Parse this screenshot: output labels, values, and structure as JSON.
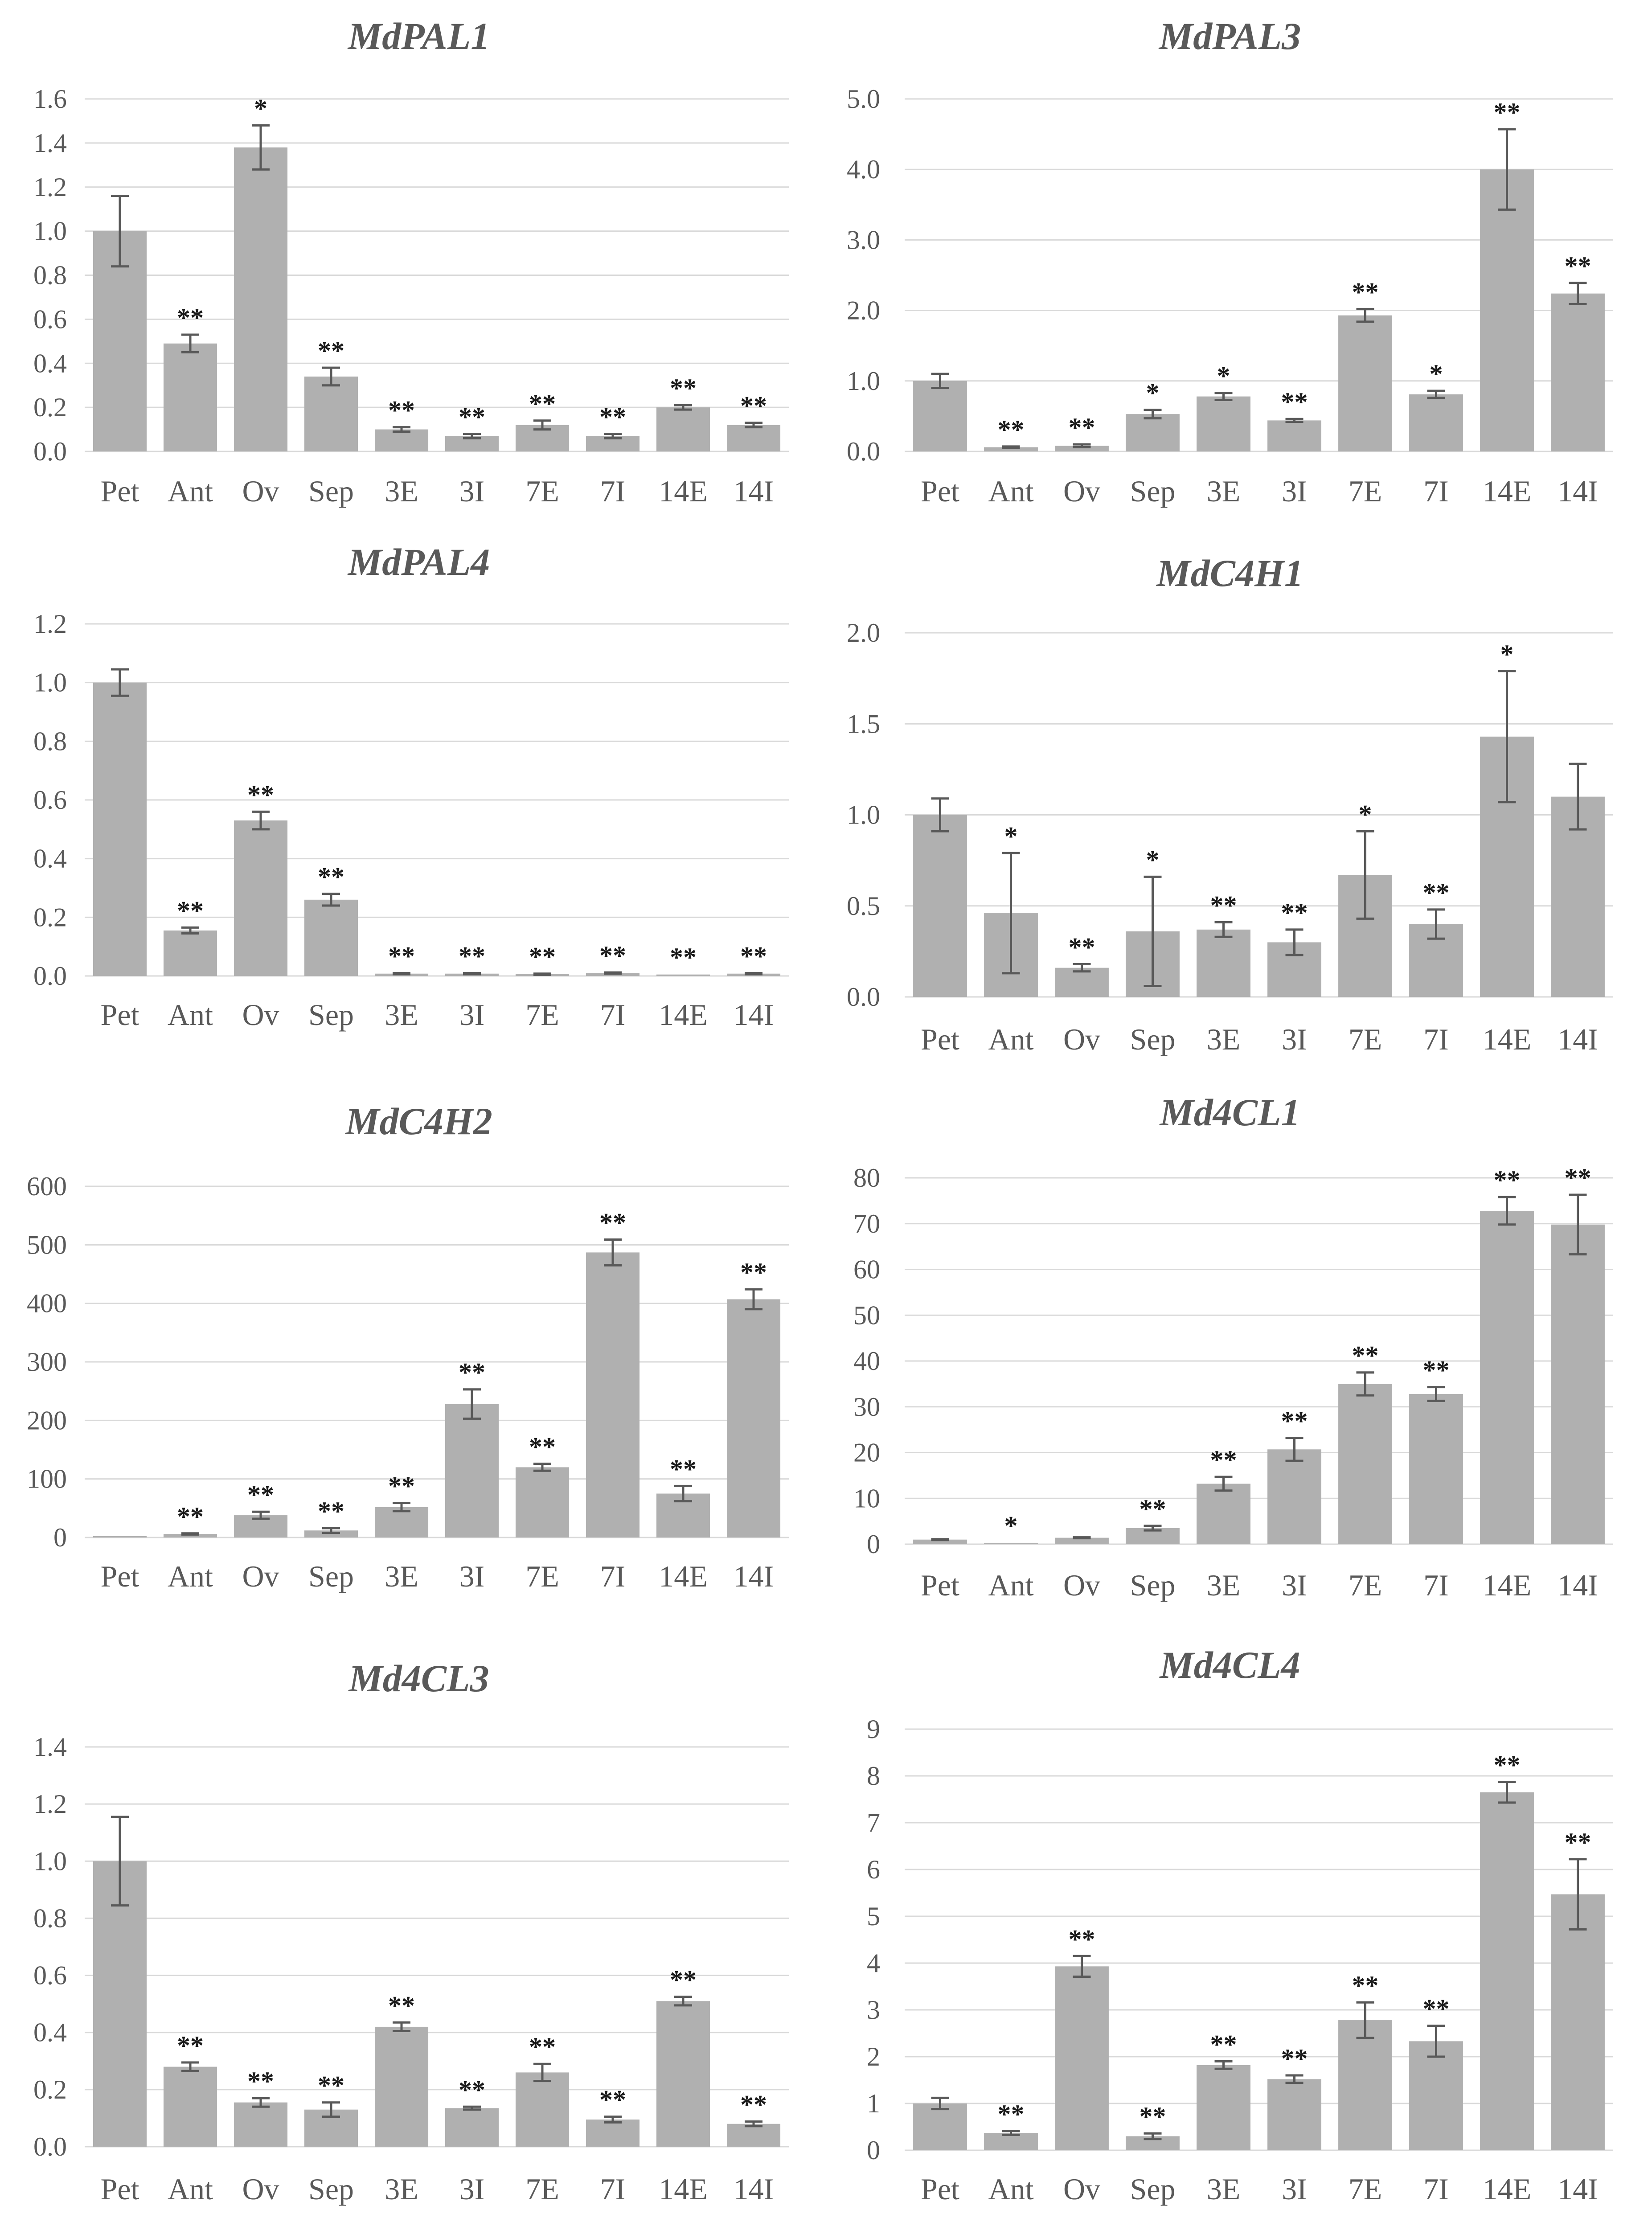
{
  "chart_data": [
    {
      "type": "bar",
      "title": "MdPAL1",
      "categories": [
        "Pet",
        "Ant",
        "Ov",
        "Sep",
        "3E",
        "3I",
        "7E",
        "7I",
        "14E",
        "14I"
      ],
      "values": [
        1.0,
        0.49,
        1.38,
        0.34,
        0.1,
        0.07,
        0.12,
        0.07,
        0.2,
        0.12
      ],
      "errors": [
        0.16,
        0.04,
        0.1,
        0.04,
        0.01,
        0.01,
        0.02,
        0.01,
        0.01,
        0.01
      ],
      "significance": [
        "",
        "**",
        "*",
        "**",
        "**",
        "**",
        "**",
        "**",
        "**",
        "**"
      ],
      "yticks": [
        "0.0",
        "0.2",
        "0.4",
        "0.6",
        "0.8",
        "1.0",
        "1.2",
        "1.4",
        "1.6"
      ],
      "ylim": [
        0,
        1.6
      ],
      "xlabel": "",
      "ylabel": ""
    },
    {
      "type": "bar",
      "title": "MdPAL3",
      "categories": [
        "Pet",
        "Ant",
        "Ov",
        "Sep",
        "3E",
        "3I",
        "7E",
        "7I",
        "14E",
        "14I"
      ],
      "values": [
        1.0,
        0.06,
        0.08,
        0.53,
        0.78,
        0.44,
        1.93,
        0.81,
        4.0,
        2.24
      ],
      "errors": [
        0.1,
        0.01,
        0.02,
        0.06,
        0.05,
        0.02,
        0.09,
        0.05,
        0.57,
        0.15
      ],
      "significance": [
        "",
        "**",
        "**",
        "*",
        "*",
        "**",
        "**",
        "*",
        "**",
        "**"
      ],
      "yticks": [
        "0.0",
        "1.0",
        "2.0",
        "3.0",
        "4.0",
        "5.0"
      ],
      "ylim": [
        0,
        5.0
      ],
      "xlabel": "",
      "ylabel": ""
    },
    {
      "type": "bar",
      "title": "MdPAL4",
      "categories": [
        "Pet",
        "Ant",
        "Ov",
        "Sep",
        "3E",
        "3I",
        "7E",
        "7I",
        "14E",
        "14I"
      ],
      "values": [
        1.0,
        0.155,
        0.53,
        0.26,
        0.008,
        0.008,
        0.006,
        0.01,
        0.005,
        0.008
      ],
      "errors": [
        0.045,
        0.01,
        0.03,
        0.02,
        0.002,
        0.002,
        0.002,
        0.002,
        0.001,
        0.002
      ],
      "significance": [
        "",
        "**",
        "**",
        "**",
        "**",
        "**",
        "**",
        "**",
        "**",
        "**"
      ],
      "yticks": [
        "0.0",
        "0.2",
        "0.4",
        "0.6",
        "0.8",
        "1.0",
        "1.2"
      ],
      "ylim": [
        0,
        1.2
      ],
      "xlabel": "",
      "ylabel": ""
    },
    {
      "type": "bar",
      "title": "MdC4H1",
      "categories": [
        "Pet",
        "Ant",
        "Ov",
        "Sep",
        "3E",
        "3I",
        "7E",
        "7I",
        "14E",
        "14I"
      ],
      "values": [
        1.0,
        0.46,
        0.16,
        0.36,
        0.37,
        0.3,
        0.67,
        0.4,
        1.43,
        1.1
      ],
      "errors": [
        0.09,
        0.33,
        0.02,
        0.3,
        0.04,
        0.07,
        0.24,
        0.08,
        0.36,
        0.18
      ],
      "significance": [
        "",
        "*",
        "**",
        "*",
        "**",
        "**",
        "*",
        "**",
        "*",
        ""
      ],
      "yticks": [
        "0.0",
        "0.5",
        "1.0",
        "1.5",
        "2.0"
      ],
      "ylim": [
        0,
        2.0
      ],
      "xlabel": "",
      "ylabel": ""
    },
    {
      "type": "bar",
      "title": "MdC4H2",
      "categories": [
        "Pet",
        "Ant",
        "Ov",
        "Sep",
        "3E",
        "3I",
        "7E",
        "7I",
        "14E",
        "14I"
      ],
      "values": [
        1,
        6,
        38,
        12,
        52,
        228,
        120,
        487,
        75,
        407
      ],
      "errors": [
        0.2,
        1,
        6,
        4,
        7,
        25,
        6,
        22,
        13,
        17
      ],
      "significance": [
        "",
        "**",
        "**",
        "**",
        "**",
        "**",
        "**",
        "**",
        "**",
        "**"
      ],
      "yticks": [
        "0",
        "100",
        "200",
        "300",
        "400",
        "500",
        "600"
      ],
      "ylim": [
        0,
        600
      ],
      "xlabel": "",
      "ylabel": ""
    },
    {
      "type": "bar",
      "title": "Md4CL1",
      "categories": [
        "Pet",
        "Ant",
        "Ov",
        "Sep",
        "3E",
        "3I",
        "7E",
        "7I",
        "14E",
        "14I"
      ],
      "values": [
        1.0,
        0.3,
        1.4,
        3.5,
        13.2,
        20.7,
        35.0,
        32.8,
        72.8,
        69.8
      ],
      "errors": [
        0.1,
        0.05,
        0.1,
        0.5,
        1.5,
        2.5,
        2.5,
        1.5,
        3.0,
        6.5
      ],
      "significance": [
        "",
        "*",
        "",
        "**",
        "**",
        "**",
        "**",
        "**",
        "**",
        "**"
      ],
      "yticks": [
        "0",
        "10",
        "20",
        "30",
        "40",
        "50",
        "60",
        "70",
        "80"
      ],
      "ylim": [
        0,
        80
      ],
      "xlabel": "",
      "ylabel": ""
    },
    {
      "type": "bar",
      "title": "Md4CL3",
      "categories": [
        "Pet",
        "Ant",
        "Ov",
        "Sep",
        "3E",
        "3I",
        "7E",
        "7I",
        "14E",
        "14I"
      ],
      "values": [
        1.0,
        0.28,
        0.155,
        0.13,
        0.42,
        0.135,
        0.26,
        0.095,
        0.51,
        0.08
      ],
      "errors": [
        0.155,
        0.015,
        0.015,
        0.025,
        0.015,
        0.005,
        0.03,
        0.01,
        0.015,
        0.008
      ],
      "significance": [
        "",
        "**",
        "**",
        "**",
        "**",
        "**",
        "**",
        "**",
        "**",
        "**"
      ],
      "yticks": [
        "0.0",
        "0.2",
        "0.4",
        "0.6",
        "0.8",
        "1.0",
        "1.2",
        "1.4"
      ],
      "ylim": [
        0,
        1.4
      ],
      "xlabel": "",
      "ylabel": ""
    },
    {
      "type": "bar",
      "title": "Md4CL4",
      "categories": [
        "Pet",
        "Ant",
        "Ov",
        "Sep",
        "3E",
        "3I",
        "7E",
        "7I",
        "14E",
        "14I"
      ],
      "values": [
        1.0,
        0.37,
        3.93,
        0.3,
        1.82,
        1.52,
        2.78,
        2.33,
        7.65,
        5.47
      ],
      "errors": [
        0.12,
        0.04,
        0.22,
        0.06,
        0.08,
        0.08,
        0.38,
        0.33,
        0.22,
        0.75
      ],
      "significance": [
        "",
        "**",
        "**",
        "**",
        "**",
        "**",
        "**",
        "**",
        "**",
        "**"
      ],
      "yticks": [
        "0",
        "1",
        "2",
        "3",
        "4",
        "5",
        "6",
        "7",
        "8",
        "9"
      ],
      "ylim": [
        0,
        9
      ],
      "xlabel": "",
      "ylabel": ""
    }
  ]
}
